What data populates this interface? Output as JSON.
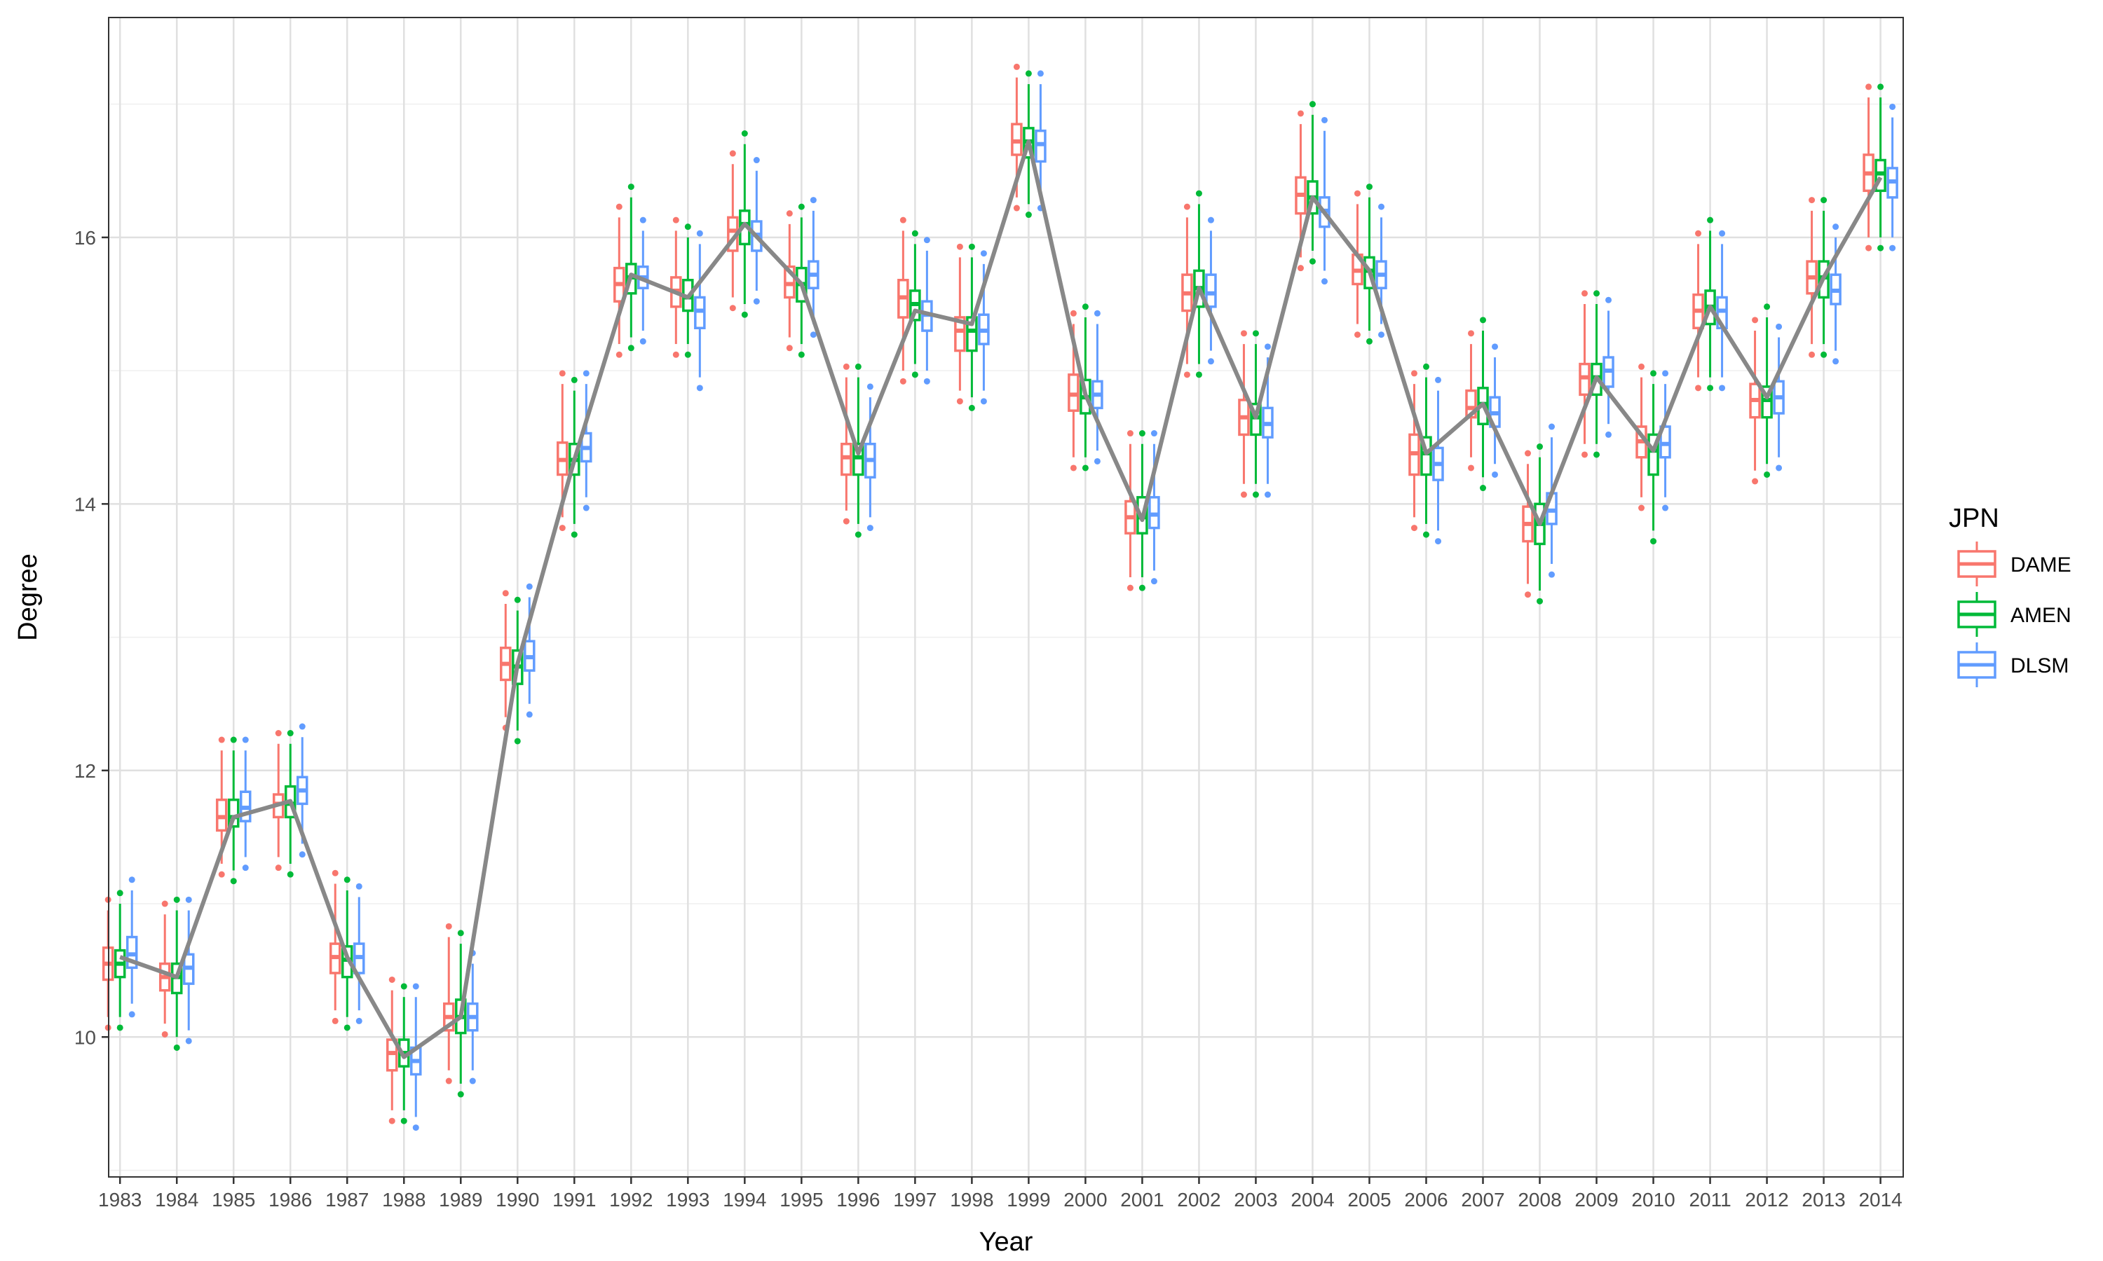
{
  "chart_data": {
    "type": "boxplot",
    "xlabel": "Year",
    "ylabel": "Degree",
    "ylim": [
      8.95,
      17.65
    ],
    "yticks": [
      10,
      12,
      14,
      16
    ],
    "grid": true,
    "legend": {
      "title": "JPN",
      "position": "right",
      "entries": [
        "DAME",
        "AMEN",
        "DLSM"
      ]
    },
    "colors": {
      "DAME": "#F8766D",
      "AMEN": "#00BA38",
      "DLSM": "#619CFF",
      "mean_line": "#888888"
    },
    "categories": [
      "1983",
      "1984",
      "1985",
      "1986",
      "1987",
      "1988",
      "1989",
      "1990",
      "1991",
      "1992",
      "1993",
      "1994",
      "1995",
      "1996",
      "1997",
      "1998",
      "1999",
      "2000",
      "2001",
      "2002",
      "2003",
      "2004",
      "2005",
      "2006",
      "2007",
      "2008",
      "2009",
      "2010",
      "2011",
      "2012",
      "2013",
      "2014"
    ],
    "medians": {
      "DAME": [
        10.55,
        10.45,
        11.65,
        11.75,
        10.6,
        9.88,
        10.15,
        12.8,
        14.33,
        15.65,
        15.6,
        16.05,
        15.65,
        14.35,
        15.55,
        15.3,
        16.72,
        14.82,
        13.9,
        15.58,
        14.65,
        16.32,
        15.75,
        14.38,
        14.72,
        13.85,
        14.95,
        14.47,
        15.45,
        14.78,
        15.7,
        16.48
      ],
      "AMEN": [
        10.55,
        10.45,
        11.65,
        11.75,
        10.58,
        9.88,
        10.15,
        12.78,
        14.33,
        15.7,
        15.55,
        16.1,
        15.65,
        14.35,
        15.5,
        15.3,
        16.72,
        14.8,
        13.9,
        15.62,
        14.65,
        16.3,
        15.75,
        14.38,
        14.75,
        13.85,
        14.95,
        14.4,
        15.48,
        14.78,
        15.7,
        16.48
      ],
      "DLSM": [
        10.62,
        10.52,
        11.72,
        11.85,
        10.6,
        9.82,
        10.15,
        12.85,
        14.42,
        15.7,
        15.45,
        16.02,
        15.72,
        14.33,
        15.42,
        15.3,
        16.7,
        14.82,
        13.92,
        15.58,
        14.6,
        16.2,
        15.72,
        14.3,
        14.68,
        13.95,
        15.0,
        14.45,
        15.45,
        14.8,
        15.6,
        16.42
      ]
    },
    "series": [
      {
        "name": "DAME",
        "boxes": [
          [
            10.15,
            10.43,
            10.55,
            10.67,
            10.95
          ],
          [
            10.1,
            10.35,
            10.45,
            10.55,
            10.92
          ],
          [
            11.3,
            11.55,
            11.65,
            11.78,
            12.15
          ],
          [
            11.35,
            11.65,
            11.75,
            11.82,
            12.2
          ],
          [
            10.2,
            10.48,
            10.6,
            10.7,
            11.15
          ],
          [
            9.45,
            9.75,
            9.88,
            9.98,
            10.35
          ],
          [
            9.75,
            10.05,
            10.15,
            10.25,
            10.75
          ],
          [
            12.4,
            12.68,
            12.8,
            12.92,
            13.25
          ],
          [
            13.9,
            14.22,
            14.33,
            14.46,
            14.9
          ],
          [
            15.2,
            15.52,
            15.65,
            15.77,
            16.15
          ],
          [
            15.2,
            15.48,
            15.6,
            15.7,
            16.05
          ],
          [
            15.55,
            15.9,
            16.05,
            16.15,
            16.55
          ],
          [
            15.25,
            15.55,
            15.65,
            15.78,
            16.1
          ],
          [
            13.95,
            14.22,
            14.35,
            14.45,
            14.95
          ],
          [
            15.0,
            15.4,
            15.55,
            15.68,
            16.05
          ],
          [
            14.85,
            15.15,
            15.3,
            15.4,
            15.85
          ],
          [
            16.3,
            16.62,
            16.72,
            16.85,
            17.2
          ],
          [
            14.35,
            14.7,
            14.82,
            14.97,
            15.35
          ],
          [
            13.45,
            13.78,
            13.9,
            14.02,
            14.45
          ],
          [
            15.05,
            15.45,
            15.58,
            15.72,
            16.15
          ],
          [
            14.15,
            14.52,
            14.65,
            14.78,
            15.2
          ],
          [
            15.85,
            16.18,
            16.32,
            16.45,
            16.85
          ],
          [
            15.35,
            15.65,
            15.75,
            15.87,
            16.25
          ],
          [
            13.9,
            14.22,
            14.38,
            14.52,
            14.9
          ],
          [
            14.35,
            14.65,
            14.72,
            14.85,
            15.2
          ],
          [
            13.4,
            13.72,
            13.85,
            13.98,
            14.3
          ],
          [
            14.45,
            14.82,
            14.95,
            15.05,
            15.5
          ],
          [
            14.05,
            14.35,
            14.47,
            14.58,
            14.95
          ],
          [
            14.95,
            15.32,
            15.45,
            15.57,
            15.95
          ],
          [
            14.25,
            14.65,
            14.78,
            14.9,
            15.3
          ],
          [
            15.2,
            15.58,
            15.7,
            15.82,
            16.2
          ],
          [
            16.0,
            16.35,
            16.48,
            16.62,
            17.05
          ]
        ]
      },
      {
        "name": "AMEN",
        "boxes": [
          [
            10.15,
            10.45,
            10.55,
            10.65,
            11.0
          ],
          [
            10.0,
            10.33,
            10.45,
            10.55,
            10.95
          ],
          [
            11.25,
            11.58,
            11.65,
            11.78,
            12.15
          ],
          [
            11.3,
            11.65,
            11.75,
            11.88,
            12.2
          ],
          [
            10.15,
            10.45,
            10.58,
            10.68,
            11.1
          ],
          [
            9.45,
            9.78,
            9.88,
            9.98,
            10.3
          ],
          [
            9.65,
            10.03,
            10.15,
            10.28,
            10.7
          ],
          [
            12.3,
            12.65,
            12.78,
            12.9,
            13.2
          ],
          [
            13.85,
            14.22,
            14.33,
            14.45,
            14.85
          ],
          [
            15.25,
            15.58,
            15.7,
            15.8,
            16.3
          ],
          [
            15.2,
            15.45,
            15.55,
            15.68,
            16.0
          ],
          [
            15.5,
            15.95,
            16.1,
            16.2,
            16.7
          ],
          [
            15.2,
            15.52,
            15.65,
            15.77,
            16.15
          ],
          [
            13.85,
            14.22,
            14.35,
            14.45,
            14.95
          ],
          [
            15.05,
            15.38,
            15.5,
            15.6,
            15.95
          ],
          [
            14.8,
            15.15,
            15.3,
            15.4,
            15.85
          ],
          [
            16.25,
            16.6,
            16.72,
            16.82,
            17.15
          ],
          [
            14.35,
            14.68,
            14.8,
            14.93,
            15.4
          ],
          [
            13.45,
            13.78,
            13.9,
            14.05,
            14.45
          ],
          [
            15.05,
            15.48,
            15.62,
            15.75,
            16.25
          ],
          [
            14.15,
            14.52,
            14.65,
            14.75,
            15.2
          ],
          [
            15.9,
            16.18,
            16.3,
            16.42,
            16.92
          ],
          [
            15.3,
            15.62,
            15.75,
            15.85,
            16.3
          ],
          [
            13.85,
            14.22,
            14.38,
            14.5,
            14.95
          ],
          [
            14.2,
            14.6,
            14.75,
            14.87,
            15.3
          ],
          [
            13.35,
            13.7,
            13.85,
            14.0,
            14.35
          ],
          [
            14.45,
            14.82,
            14.95,
            15.05,
            15.5
          ],
          [
            13.8,
            14.22,
            14.4,
            14.52,
            14.9
          ],
          [
            14.95,
            15.35,
            15.48,
            15.6,
            16.05
          ],
          [
            14.3,
            14.65,
            14.78,
            14.88,
            15.4
          ],
          [
            15.2,
            15.55,
            15.7,
            15.82,
            16.2
          ],
          [
            16.0,
            16.35,
            16.48,
            16.58,
            17.05
          ]
        ]
      },
      {
        "name": "DLSM",
        "boxes": [
          [
            10.25,
            10.52,
            10.62,
            10.75,
            11.1
          ],
          [
            10.05,
            10.4,
            10.52,
            10.62,
            10.95
          ],
          [
            11.35,
            11.62,
            11.72,
            11.84,
            12.15
          ],
          [
            11.45,
            11.75,
            11.85,
            11.95,
            12.25
          ],
          [
            10.2,
            10.48,
            10.6,
            10.7,
            11.05
          ],
          [
            9.4,
            9.72,
            9.82,
            9.92,
            10.3
          ],
          [
            9.75,
            10.05,
            10.15,
            10.25,
            10.55
          ],
          [
            12.5,
            12.75,
            12.85,
            12.97,
            13.3
          ],
          [
            14.05,
            14.32,
            14.42,
            14.53,
            14.9
          ],
          [
            15.3,
            15.62,
            15.7,
            15.78,
            16.05
          ],
          [
            14.95,
            15.32,
            15.45,
            15.55,
            15.95
          ],
          [
            15.6,
            15.9,
            16.02,
            16.12,
            16.5
          ],
          [
            15.35,
            15.62,
            15.72,
            15.82,
            16.2
          ],
          [
            13.9,
            14.2,
            14.33,
            14.45,
            14.8
          ],
          [
            15.0,
            15.3,
            15.42,
            15.52,
            15.9
          ],
          [
            14.85,
            15.2,
            15.3,
            15.42,
            15.8
          ],
          [
            16.3,
            16.57,
            16.7,
            16.8,
            17.15
          ],
          [
            14.4,
            14.72,
            14.82,
            14.92,
            15.35
          ],
          [
            13.5,
            13.82,
            13.92,
            14.05,
            14.45
          ],
          [
            15.15,
            15.48,
            15.58,
            15.72,
            16.05
          ],
          [
            14.15,
            14.5,
            14.6,
            14.72,
            15.1
          ],
          [
            15.75,
            16.08,
            16.2,
            16.3,
            16.8
          ],
          [
            15.35,
            15.62,
            15.72,
            15.82,
            16.15
          ],
          [
            13.8,
            14.18,
            14.3,
            14.42,
            14.85
          ],
          [
            14.3,
            14.58,
            14.68,
            14.8,
            15.1
          ],
          [
            13.55,
            13.85,
            13.95,
            14.08,
            14.5
          ],
          [
            14.6,
            14.88,
            15.0,
            15.1,
            15.45
          ],
          [
            14.05,
            14.35,
            14.45,
            14.58,
            14.9
          ],
          [
            14.95,
            15.32,
            15.45,
            15.55,
            15.95
          ],
          [
            14.35,
            14.68,
            14.8,
            14.92,
            15.25
          ],
          [
            15.15,
            15.5,
            15.6,
            15.72,
            16.0
          ],
          [
            16.0,
            16.3,
            16.42,
            16.52,
            16.9
          ]
        ]
      }
    ],
    "mean_line": [
      10.6,
      10.45,
      11.65,
      11.77,
      10.6,
      9.85,
      10.15,
      12.8,
      14.33,
      15.72,
      15.55,
      16.1,
      15.65,
      14.38,
      15.45,
      15.35,
      16.72,
      14.82,
      13.88,
      15.62,
      14.65,
      16.3,
      15.75,
      14.38,
      14.75,
      13.85,
      14.95,
      14.4,
      15.48,
      14.8,
      15.7,
      16.45
    ]
  }
}
